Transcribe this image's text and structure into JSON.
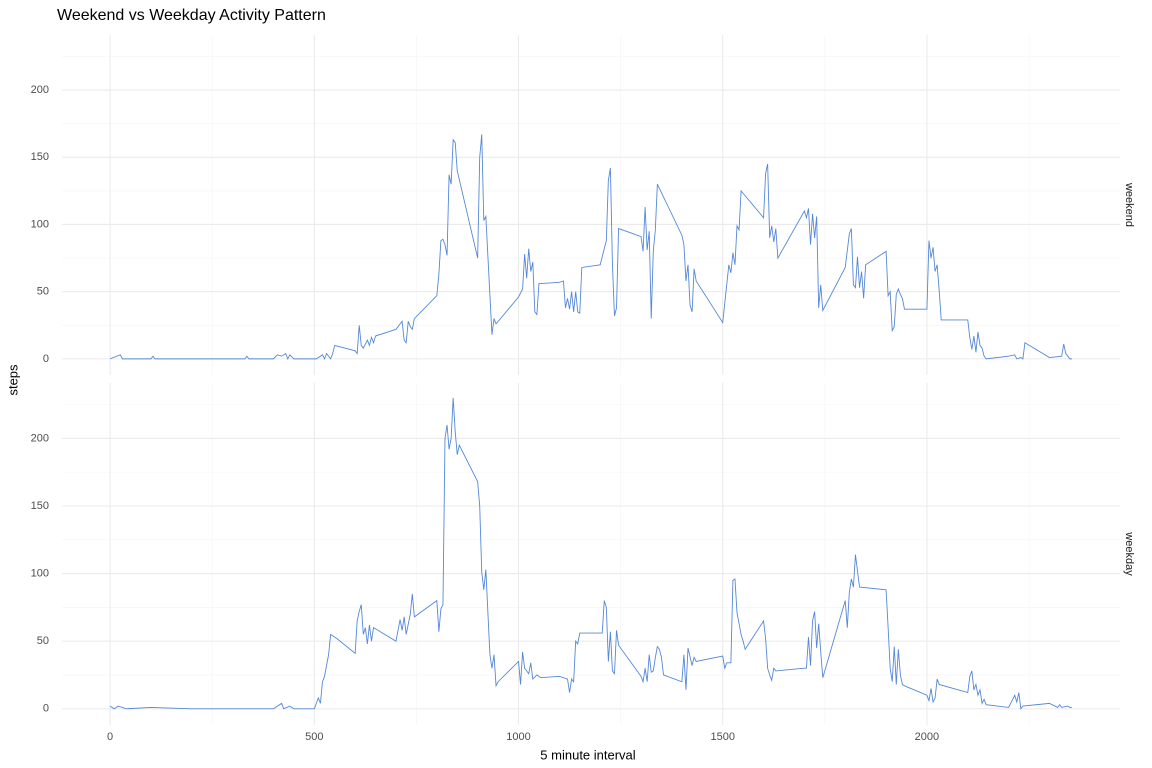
{
  "chart_data": {
    "type": "line",
    "title": "Weekend vs Weekday Activity Pattern",
    "xlabel": "5 minute interval",
    "ylabel": "steps",
    "color": "#5588d8",
    "grid": true,
    "xlim": [
      -117.75,
      2472.75
    ],
    "ylim": [
      -12,
      241
    ],
    "xticks": [
      0,
      500,
      1000,
      1500,
      2000
    ],
    "xminor": [
      250,
      750,
      1250,
      1750,
      2250
    ],
    "yticks": [
      0,
      50,
      100,
      150,
      200
    ],
    "yminor": [
      25,
      75,
      125,
      175,
      225
    ],
    "panels": [
      {
        "label": "weekend",
        "x": [
          0,
          25,
          30,
          100,
          105,
          110,
          200,
          330,
          335,
          340,
          400,
          410,
          420,
          430,
          435,
          440,
          450,
          500,
          505,
          520,
          525,
          530,
          540,
          545,
          550,
          600,
          605,
          610,
          615,
          620,
          630,
          635,
          640,
          645,
          650,
          700,
          715,
          720,
          725,
          730,
          735,
          740,
          745,
          800,
          805,
          810,
          815,
          820,
          825,
          830,
          835,
          840,
          845,
          850,
          900,
          905,
          910,
          915,
          920,
          935,
          940,
          945,
          1000,
          1010,
          1015,
          1020,
          1025,
          1030,
          1035,
          1040,
          1045,
          1050,
          1100,
          1110,
          1115,
          1120,
          1125,
          1130,
          1135,
          1140,
          1145,
          1150,
          1155,
          1200,
          1215,
          1220,
          1225,
          1230,
          1235,
          1240,
          1245,
          1300,
          1305,
          1310,
          1315,
          1320,
          1325,
          1330,
          1335,
          1340,
          1400,
          1405,
          1410,
          1415,
          1420,
          1425,
          1430,
          1435,
          1500,
          1515,
          1520,
          1525,
          1530,
          1535,
          1540,
          1545,
          1600,
          1605,
          1610,
          1615,
          1620,
          1625,
          1630,
          1635,
          1700,
          1705,
          1710,
          1715,
          1720,
          1725,
          1730,
          1735,
          1740,
          1745,
          1800,
          1810,
          1815,
          1820,
          1825,
          1830,
          1835,
          1840,
          1845,
          1850,
          1900,
          1905,
          1910,
          1915,
          1920,
          1925,
          1930,
          1935,
          1940,
          1945,
          2000,
          2005,
          2010,
          2015,
          2020,
          2025,
          2030,
          2035,
          2100,
          2105,
          2110,
          2115,
          2120,
          2125,
          2130,
          2135,
          2140,
          2145,
          2200,
          2215,
          2220,
          2230,
          2235,
          2240,
          2300,
          2330,
          2335,
          2340,
          2345,
          2350,
          2355
        ],
        "values": [
          0,
          3,
          0,
          0,
          2,
          0,
          0,
          0,
          2,
          0,
          0,
          3,
          2,
          4,
          0,
          3,
          0,
          0,
          0,
          3,
          0,
          4,
          0,
          4,
          10,
          6,
          4,
          25,
          10,
          8,
          14,
          10,
          16,
          12,
          17,
          22,
          28,
          14,
          12,
          28,
          24,
          22,
          30,
          47,
          63,
          88,
          89,
          85,
          77,
          137,
          130,
          163,
          161,
          140,
          75,
          150,
          167,
          103,
          106,
          18,
          30,
          26,
          46,
          52,
          78,
          60,
          82,
          65,
          72,
          35,
          33,
          56,
          57,
          58,
          38,
          45,
          37,
          50,
          35,
          50,
          35,
          34,
          68,
          70,
          88,
          133,
          142,
          70,
          32,
          38,
          97,
          91,
          80,
          113,
          81,
          95,
          30,
          80,
          96,
          130,
          92,
          85,
          58,
          70,
          40,
          35,
          67,
          58,
          27,
          70,
          64,
          79,
          70,
          99,
          96,
          125,
          105,
          138,
          145,
          90,
          99,
          87,
          97,
          75,
          110,
          105,
          112,
          85,
          108,
          90,
          106,
          38,
          55,
          36,
          68,
          93,
          97,
          55,
          53,
          76,
          53,
          65,
          45,
          70,
          80,
          47,
          50,
          21,
          24,
          48,
          52,
          48,
          45,
          37,
          37,
          88,
          75,
          83,
          65,
          70,
          51,
          29,
          29,
          16,
          7,
          17,
          5,
          20,
          10,
          8,
          2,
          0,
          2,
          3,
          0,
          1,
          0,
          12,
          1,
          2,
          11,
          4,
          2,
          0,
          0
        ]
      },
      {
        "label": "weekday",
        "x": [
          0,
          10,
          20,
          40,
          100,
          200,
          300,
          350,
          400,
          420,
          425,
          440,
          450,
          500,
          505,
          510,
          515,
          520,
          525,
          535,
          540,
          555,
          600,
          605,
          610,
          615,
          620,
          625,
          630,
          635,
          640,
          645,
          700,
          710,
          715,
          720,
          725,
          735,
          740,
          745,
          800,
          805,
          810,
          815,
          820,
          825,
          830,
          835,
          840,
          845,
          850,
          855,
          900,
          905,
          910,
          915,
          920,
          930,
          935,
          940,
          945,
          950,
          1000,
          1005,
          1010,
          1015,
          1025,
          1030,
          1035,
          1045,
          1055,
          1100,
          1120,
          1125,
          1130,
          1135,
          1140,
          1145,
          1150,
          1200,
          1205,
          1210,
          1215,
          1220,
          1225,
          1230,
          1235,
          1240,
          1245,
          1300,
          1305,
          1310,
          1315,
          1320,
          1325,
          1330,
          1335,
          1340,
          1345,
          1350,
          1355,
          1400,
          1405,
          1410,
          1415,
          1425,
          1430,
          1435,
          1500,
          1505,
          1510,
          1520,
          1525,
          1530,
          1535,
          1545,
          1550,
          1555,
          1600,
          1605,
          1610,
          1615,
          1620,
          1625,
          1630,
          1700,
          1705,
          1710,
          1715,
          1720,
          1725,
          1730,
          1735,
          1740,
          1745,
          1800,
          1805,
          1810,
          1815,
          1820,
          1825,
          1830,
          1835,
          1900,
          1905,
          1910,
          1915,
          1920,
          1925,
          1930,
          1935,
          1940,
          1945,
          2000,
          2005,
          2010,
          2015,
          2020,
          2025,
          2030,
          2100,
          2105,
          2110,
          2115,
          2120,
          2125,
          2130,
          2135,
          2140,
          2145,
          2200,
          2215,
          2220,
          2225,
          2230,
          2235,
          2300,
          2320,
          2325,
          2330,
          2345,
          2350,
          2355
        ],
        "values": [
          2,
          0,
          2,
          0,
          1,
          0,
          0,
          0,
          0,
          4,
          0,
          2,
          0,
          0,
          4,
          8,
          4,
          20,
          24,
          40,
          55,
          52,
          41,
          65,
          72,
          77,
          55,
          60,
          48,
          62,
          50,
          60,
          50,
          66,
          58,
          68,
          55,
          70,
          85,
          68,
          80,
          57,
          74,
          77,
          200,
          210,
          192,
          200,
          230,
          205,
          188,
          195,
          168,
          150,
          101,
          88,
          103,
          40,
          30,
          40,
          17,
          20,
          35,
          18,
          42,
          30,
          26,
          34,
          22,
          25,
          23,
          24,
          22,
          12,
          22,
          20,
          50,
          48,
          56,
          56,
          56,
          80,
          75,
          35,
          57,
          28,
          26,
          58,
          47,
          24,
          20,
          30,
          20,
          40,
          27,
          28,
          38,
          46,
          44,
          38,
          25,
          20,
          40,
          14,
          45,
          32,
          38,
          35,
          39,
          30,
          34,
          34,
          95,
          96,
          71,
          55,
          50,
          44,
          65,
          52,
          30,
          25,
          21,
          30,
          28,
          30,
          30,
          53,
          32,
          65,
          72,
          45,
          63,
          42,
          23,
          80,
          60,
          86,
          96,
          90,
          114,
          102,
          90,
          88,
          60,
          30,
          20,
          46,
          18,
          44,
          25,
          18,
          17,
          10,
          6,
          15,
          5,
          8,
          22,
          18,
          12,
          24,
          28,
          14,
          18,
          10,
          14,
          4,
          7,
          3,
          1,
          10,
          5,
          12,
          0,
          2,
          4,
          1,
          3,
          1,
          2,
          1,
          1
        ]
      }
    ]
  }
}
